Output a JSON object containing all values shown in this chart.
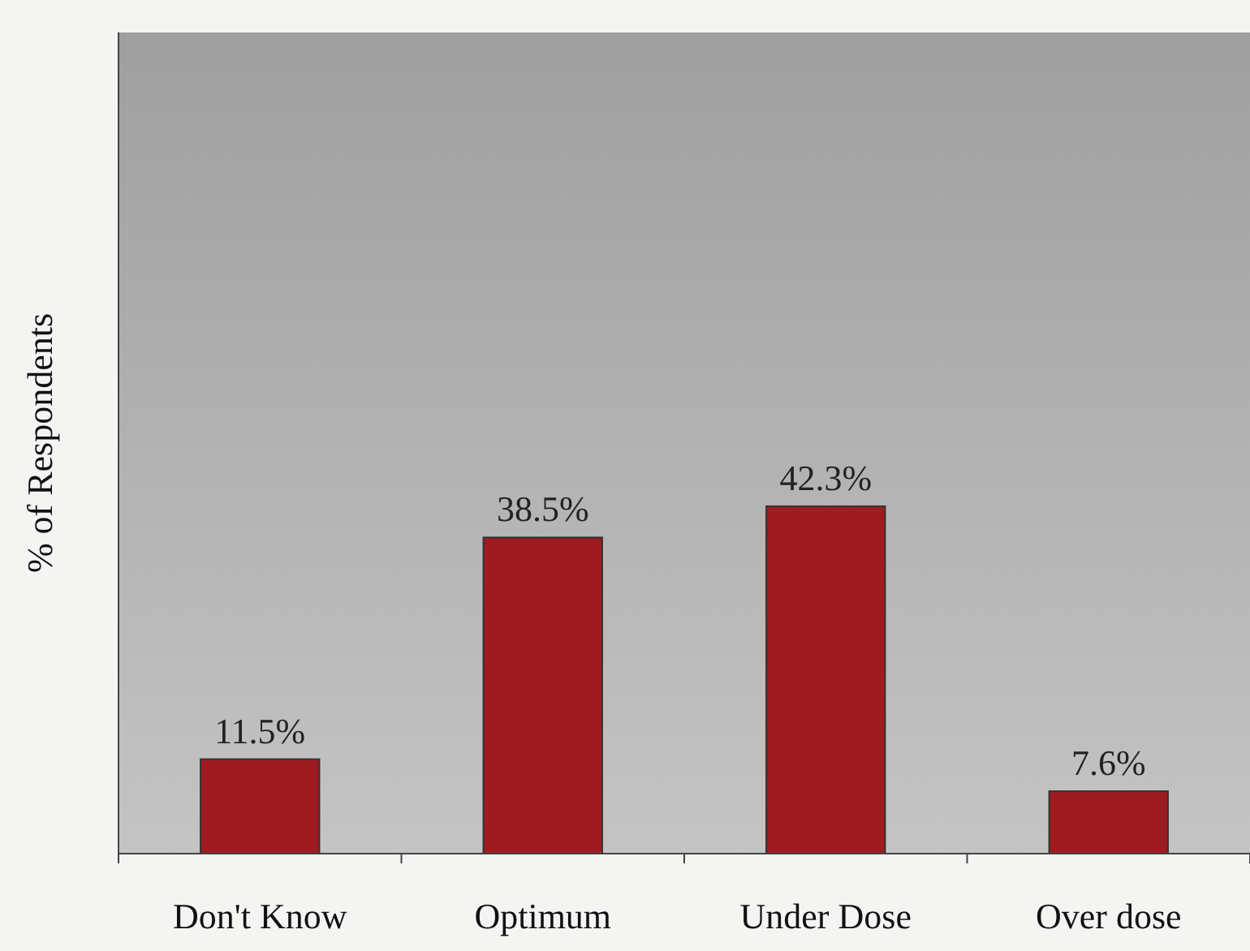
{
  "chart_data": {
    "type": "bar",
    "ylabel": "% of Respondents",
    "categories": [
      "Don't Know",
      "Optimum",
      "Under Dose",
      "Over dose"
    ],
    "values": [
      11.5,
      38.5,
      42.3,
      7.6
    ],
    "value_labels": [
      "11.5%",
      "38.5%",
      "42.3%",
      "7.6%"
    ],
    "color": "#9e1b1f",
    "ylim": [
      0,
      100
    ],
    "tick_labels": "x"
  }
}
